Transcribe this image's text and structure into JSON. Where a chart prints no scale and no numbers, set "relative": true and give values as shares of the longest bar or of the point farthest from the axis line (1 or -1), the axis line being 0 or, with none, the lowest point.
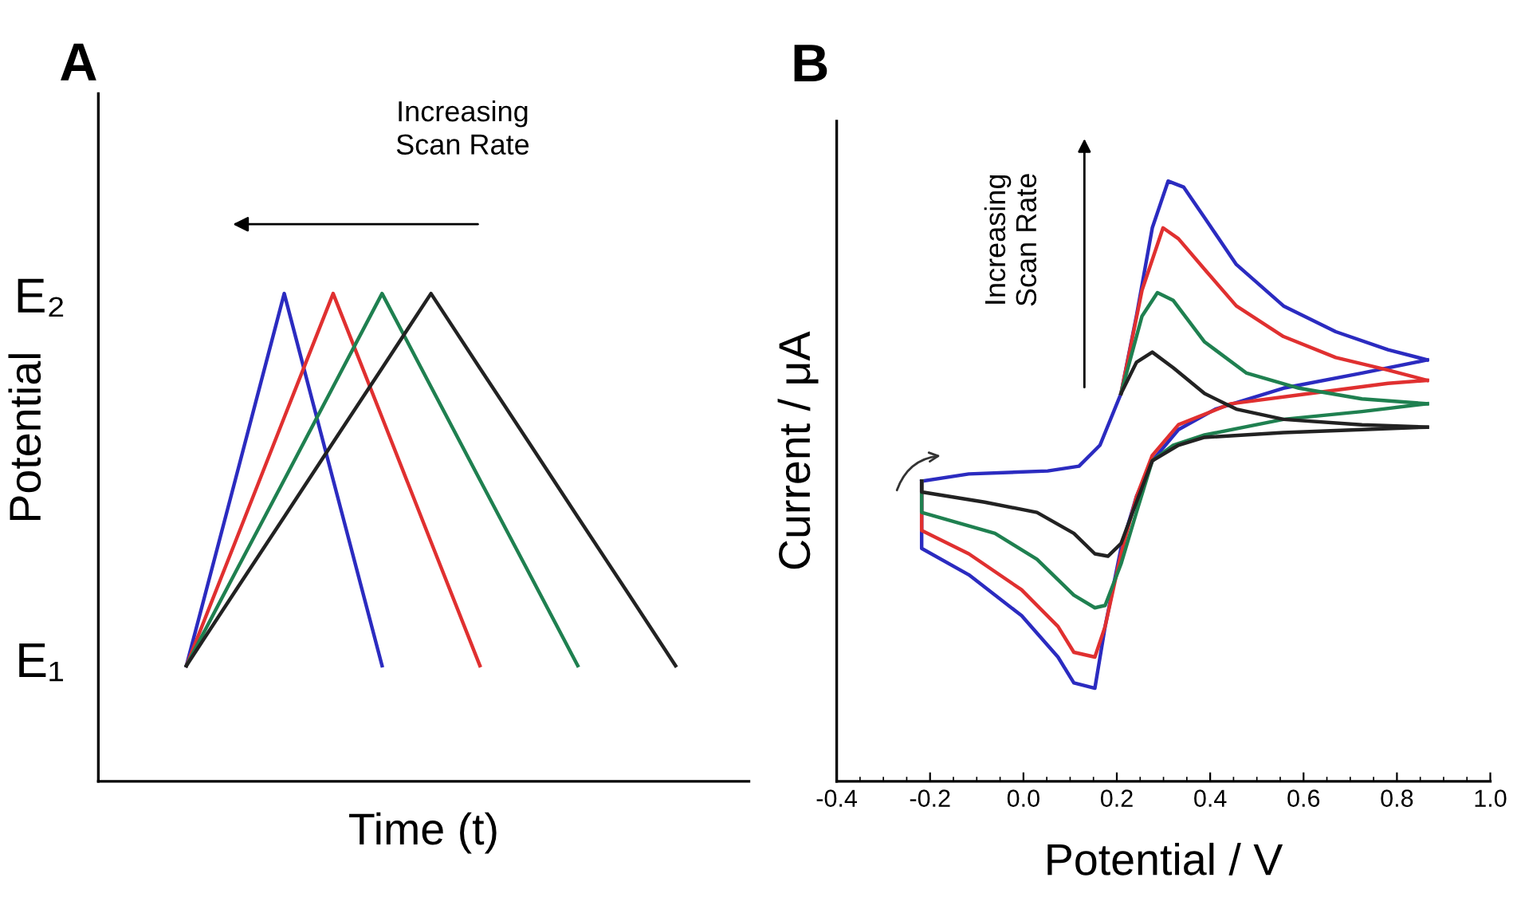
{
  "chart_data": [
    {
      "type": "line",
      "title": "A",
      "xlabel": "Time (t)",
      "ylabel": "Potential",
      "categories": [
        null,
        null,
        null,
        null,
        null,
        null,
        null,
        null,
        null,
        null,
        null
      ],
      "relative": true,
      "tick_labels": false,
      "grid": false,
      "legend": false,
      "annotations": [
        "Increasing Scan Rate",
        "E₂",
        "E₁"
      ],
      "series": [
        {
          "color": "#2b2bc0",
          "values": [
            0.237,
            0.618,
            1,
            0.618,
            0.237,
            null,
            null,
            null,
            null,
            null,
            null
          ]
        },
        {
          "color": "#e03030",
          "values": [
            0.237,
            0.491,
            0.746,
            1,
            0.746,
            0.491,
            0.237,
            null,
            null,
            null,
            null
          ]
        },
        {
          "color": "#1f8050",
          "values": [
            0.237,
            0.428,
            0.618,
            0.809,
            1,
            0.809,
            0.618,
            0.428,
            0.237,
            null,
            null
          ]
        },
        {
          "color": "#222222",
          "values": [
            0.237,
            0.39,
            0.542,
            0.695,
            0.847,
            1,
            0.847,
            0.695,
            0.542,
            0.39,
            0.237
          ]
        }
      ]
    },
    {
      "type": "line",
      "title": "B",
      "xlabel": "Potential / V",
      "ylabel": "Current / μA",
      "relative": true,
      "xlim": [
        -0.4,
        1.0
      ],
      "xticks": [
        {
          "value": -0.4,
          "label": "-0.4"
        },
        {
          "value": -0.35,
          "label": null
        },
        {
          "value": -0.3,
          "label": null
        },
        {
          "value": -0.25,
          "label": null
        },
        {
          "value": -0.2,
          "label": "-0.2"
        },
        {
          "value": -0.15,
          "label": null
        },
        {
          "value": -0.1,
          "label": null
        },
        {
          "value": -0.05,
          "label": null
        },
        {
          "value": 0.0,
          "label": "0.0"
        },
        {
          "value": 0.05,
          "label": null
        },
        {
          "value": 0.1,
          "label": null
        },
        {
          "value": 0.15,
          "label": null
        },
        {
          "value": 0.2,
          "label": "0.2"
        },
        {
          "value": 0.25,
          "label": null
        },
        {
          "value": 0.3,
          "label": null
        },
        {
          "value": 0.35,
          "label": null
        },
        {
          "value": 0.4,
          "label": "0.4"
        },
        {
          "value": 0.45,
          "label": null
        },
        {
          "value": 0.5,
          "label": null
        },
        {
          "value": 0.55,
          "label": null
        },
        {
          "value": 0.6,
          "label": "0.6"
        },
        {
          "value": 0.65,
          "label": null
        },
        {
          "value": 0.7,
          "label": null
        },
        {
          "value": 0.75,
          "label": null
        },
        {
          "value": 0.8,
          "label": "0.8"
        },
        {
          "value": 0.85,
          "label": null
        },
        {
          "value": 0.9,
          "label": null
        },
        {
          "value": 0.95,
          "label": null
        },
        {
          "value": 1.0,
          "label": "1.0"
        }
      ],
      "tick_labels": "x",
      "grid": false,
      "legend": false,
      "annotations": [
        "Increasing Scan Rate"
      ],
      "series": [
        {
          "color": "#2b2bc0",
          "x": [
            -0.218,
            -0.117,
            0.052,
            0.119,
            0.164,
            0.209,
            0.242,
            0.276,
            0.31,
            0.343,
            0.388,
            0.456,
            0.557,
            0.669,
            0.781,
            0.865
          ],
          "values": [
            0.5,
            0.512,
            0.517,
            0.525,
            0.56,
            0.646,
            0.775,
            0.922,
            1.0,
            0.99,
            0.939,
            0.861,
            0.792,
            0.749,
            0.719,
            0.702
          ]
        },
        {
          "color": "#2b2bc0",
          "x": [
            0.865,
            0.725,
            0.557,
            0.411,
            0.332,
            0.276,
            0.242,
            0.209,
            0.175,
            0.153,
            0.108,
            0.074,
            -0.004,
            -0.117,
            -0.218,
            -0.218
          ],
          "values": [
            0.702,
            0.68,
            0.655,
            0.62,
            0.586,
            0.534,
            0.474,
            0.388,
            0.258,
            0.155,
            0.164,
            0.207,
            0.276,
            0.344,
            0.388,
            0.5
          ]
        },
        {
          "color": "#e03030",
          "x": [
            0.209,
            0.254,
            0.299,
            0.332,
            0.388,
            0.456,
            0.557,
            0.669,
            0.781,
            0.865
          ],
          "values": [
            0.646,
            0.818,
            0.922,
            0.904,
            0.853,
            0.792,
            0.741,
            0.706,
            0.685,
            0.668
          ]
        },
        {
          "color": "#e03030",
          "x": [
            0.865,
            0.781,
            0.613,
            0.444,
            0.332,
            0.276,
            0.242,
            0.209,
            0.175,
            0.153,
            0.108,
            0.074,
            -0.004,
            -0.117,
            -0.218,
            -0.218
          ],
          "values": [
            0.668,
            0.663,
            0.646,
            0.629,
            0.594,
            0.543,
            0.474,
            0.379,
            0.258,
            0.207,
            0.215,
            0.258,
            0.319,
            0.379,
            0.418,
            0.5
          ]
        },
        {
          "color": "#1f8050",
          "x": [
            0.209,
            0.254,
            0.287,
            0.321,
            0.388,
            0.478,
            0.59,
            0.725,
            0.865
          ],
          "values": [
            0.646,
            0.775,
            0.814,
            0.801,
            0.732,
            0.68,
            0.655,
            0.637,
            0.629
          ]
        },
        {
          "color": "#1f8050",
          "x": [
            0.865,
            0.725,
            0.557,
            0.388,
            0.321,
            0.276,
            0.242,
            0.209,
            0.175,
            0.153,
            0.108,
            0.029,
            -0.061,
            -0.218,
            -0.218
          ],
          "values": [
            0.629,
            0.616,
            0.603,
            0.577,
            0.56,
            0.534,
            0.448,
            0.362,
            0.293,
            0.289,
            0.31,
            0.37,
            0.413,
            0.448,
            0.5
          ]
        },
        {
          "color": "#222222",
          "x": [
            0.209,
            0.242,
            0.276,
            0.321,
            0.388,
            0.456,
            0.557,
            0.725,
            0.865
          ],
          "values": [
            0.646,
            0.698,
            0.715,
            0.689,
            0.646,
            0.62,
            0.603,
            0.594,
            0.59
          ]
        },
        {
          "color": "#222222",
          "x": [
            0.865,
            0.725,
            0.557,
            0.388,
            0.332,
            0.276,
            0.242,
            0.209,
            0.181,
            0.153,
            0.108,
            0.029,
            -0.083,
            -0.218,
            -0.218
          ],
          "values": [
            0.59,
            0.586,
            0.581,
            0.573,
            0.56,
            0.534,
            0.465,
            0.396,
            0.375,
            0.379,
            0.413,
            0.448,
            0.465,
            0.482,
            0.5
          ]
        }
      ]
    }
  ]
}
